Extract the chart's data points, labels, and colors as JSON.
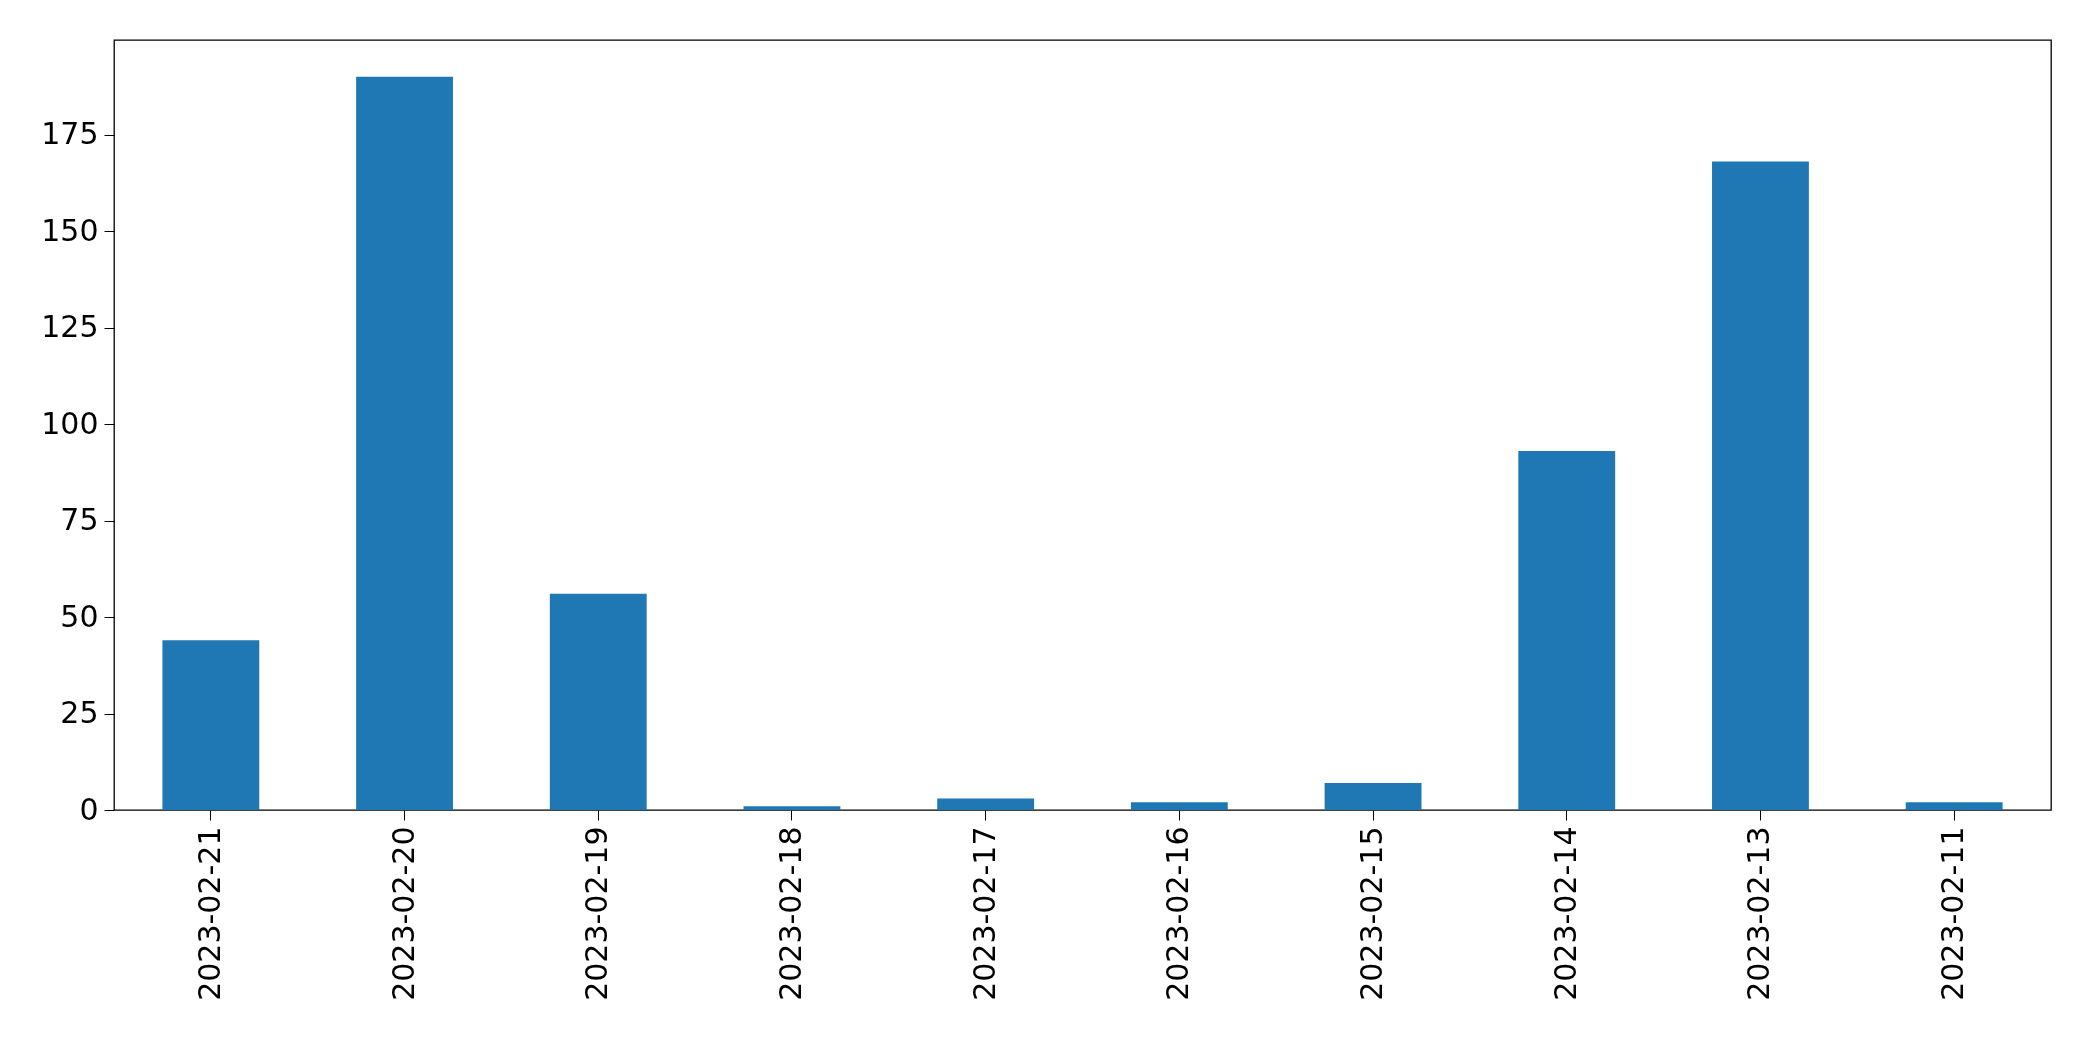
{
  "chart_data": {
    "type": "bar",
    "categories": [
      "2023-02-21",
      "2023-02-20",
      "2023-02-19",
      "2023-02-18",
      "2023-02-17",
      "2023-02-16",
      "2023-02-15",
      "2023-02-14",
      "2023-02-13",
      "2023-02-11"
    ],
    "values": [
      44,
      190,
      56,
      1,
      3,
      2,
      7,
      93,
      168,
      2
    ],
    "color": "#1f77b4",
    "ylim": [
      0,
      199.5
    ],
    "yticks": [
      0,
      25,
      50,
      75,
      100,
      125,
      150,
      175
    ],
    "grid": false
  }
}
